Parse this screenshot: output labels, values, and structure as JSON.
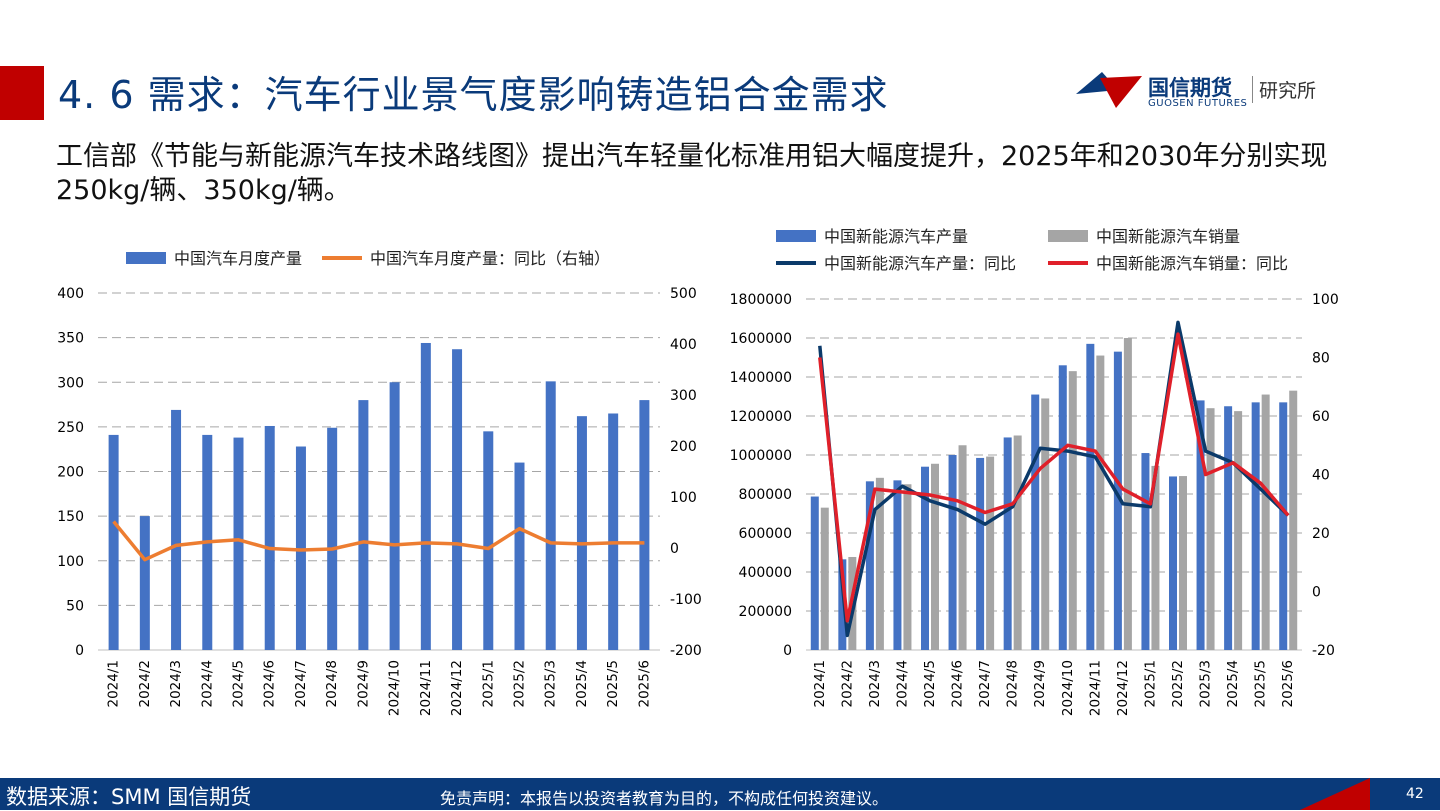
{
  "header": {
    "title": "4. 6  需求：汽车行业景气度影响铸造铝合金需求",
    "logo_cn": "国信期货",
    "logo_en": "GUOSEN FUTURES",
    "logo_suffix": "研究所"
  },
  "intro_text": "工信部《节能与新能源汽车技术路线图》提出汽车轻量化标准用铝大幅度提升，2025年和2030年分别实现250kg/辆、350kg/辆。",
  "footer": {
    "source": "数据来源：SMM 国信期货",
    "disclaimer": "免责声明：本报告以投资者教育为目的，不构成任何投资建议。",
    "page": "42"
  },
  "colors": {
    "brand_blue": "#0a3a7a",
    "brand_red": "#c00000"
  },
  "chart_data": [
    {
      "type": "bar",
      "categories": [
        "2024/1",
        "2024/2",
        "2024/3",
        "2024/4",
        "2024/5",
        "2024/6",
        "2024/7",
        "2024/8",
        "2024/9",
        "2024/10",
        "2024/11",
        "2024/12",
        "2025/1",
        "2025/2",
        "2025/3",
        "2025/4",
        "2025/5",
        "2025/6"
      ],
      "series": [
        {
          "name": "中国汽车月度产量",
          "kind": "bar",
          "axis": "left",
          "color": "#4472c4",
          "values": [
            241,
            150,
            269,
            241,
            238,
            251,
            228,
            249,
            280,
            300,
            344,
            337,
            245,
            210,
            301,
            262,
            265,
            280
          ]
        },
        {
          "name": "中国汽车月度产量：同比（右轴）",
          "kind": "line",
          "axis": "right",
          "color": "#ed7d31",
          "values": [
            52,
            -23,
            5,
            12,
            16,
            -1,
            -4,
            -2,
            12,
            6,
            10,
            8,
            -1,
            38,
            10,
            8,
            10,
            10
          ]
        }
      ],
      "ylim": [
        0,
        400
      ],
      "yticks": [
        0,
        50,
        100,
        150,
        200,
        250,
        300,
        350,
        400
      ],
      "y2lim": [
        -200,
        500
      ],
      "y2ticks": [
        -200,
        -100,
        0,
        100,
        200,
        300,
        400,
        500
      ],
      "y2_labels": [
        "-200",
        "-100",
        "0",
        "100",
        "200",
        "300",
        "400",
        "500"
      ],
      "grid": true,
      "legend": "top"
    },
    {
      "type": "bar",
      "categories": [
        "2024/1",
        "2024/2",
        "2024/3",
        "2024/4",
        "2024/5",
        "2024/6",
        "2024/7",
        "2024/8",
        "2024/9",
        "2024/10",
        "2024/11",
        "2024/12",
        "2025/1",
        "2025/2",
        "2025/3",
        "2025/4",
        "2025/5",
        "2025/6"
      ],
      "series": [
        {
          "name": "中国新能源汽车产量",
          "kind": "bar",
          "axis": "left",
          "color": "#4472c4",
          "values": [
            787000,
            465000,
            865000,
            870000,
            940000,
            1000000,
            985000,
            1090000,
            1310000,
            1460000,
            1570000,
            1530000,
            1010000,
            890000,
            1280000,
            1250000,
            1270000,
            1270000
          ]
        },
        {
          "name": "中国新能源汽车销量",
          "kind": "bar",
          "axis": "left",
          "color": "#a5a5a5",
          "values": [
            730000,
            477000,
            883000,
            850000,
            955000,
            1050000,
            992000,
            1100000,
            1290000,
            1430000,
            1510000,
            1600000,
            944000,
            892000,
            1240000,
            1225000,
            1310000,
            1330000
          ]
        },
        {
          "name": "中国新能源汽车产量：同比",
          "kind": "line",
          "axis": "right",
          "color": "#0b3a6a",
          "values": [
            84,
            -15,
            28,
            36,
            31,
            28,
            23,
            29,
            49,
            48,
            46,
            30,
            29,
            92,
            48,
            44,
            35,
            26
          ]
        },
        {
          "name": "中国新能源汽车销量：同比",
          "kind": "line",
          "axis": "right",
          "color": "#e0202a",
          "values": [
            80,
            -10,
            35,
            34,
            33,
            31,
            27,
            30,
            42,
            50,
            48,
            35,
            30,
            88,
            40,
            44,
            37,
            26
          ]
        }
      ],
      "ylim": [
        0,
        1800000
      ],
      "yticks": [
        0,
        200000,
        400000,
        600000,
        800000,
        1000000,
        1200000,
        1400000,
        1600000,
        1800000
      ],
      "y2lim": [
        -20,
        100
      ],
      "y2ticks": [
        -20,
        0,
        20,
        40,
        60,
        80,
        100
      ],
      "y2_labels": [
        "-20",
        "0",
        "20",
        "40",
        "60",
        "80",
        "100"
      ],
      "grid": true,
      "legend": "top"
    }
  ]
}
